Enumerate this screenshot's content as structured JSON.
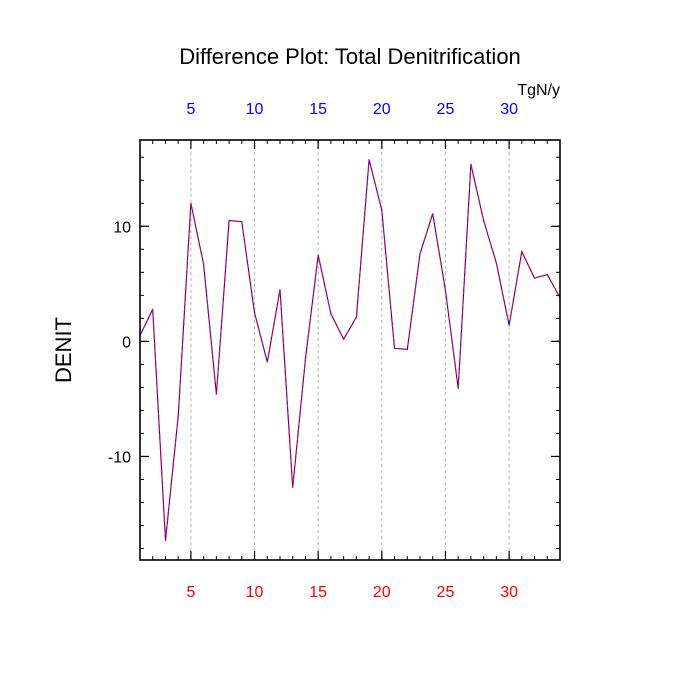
{
  "chart_data": {
    "type": "line",
    "title": "Difference Plot: Total Denitrification",
    "units_label": "TgN/y",
    "xlabel": "",
    "ylabel": "DENIT",
    "xlim": [
      1,
      34
    ],
    "ylim": [
      -19,
      17.5
    ],
    "x_ticks": [
      5,
      10,
      15,
      20,
      25,
      30
    ],
    "x_tick_labels": [
      "5",
      "10",
      "15",
      "20",
      "25",
      "30"
    ],
    "y_ticks": [
      -10,
      0,
      10
    ],
    "y_tick_labels": [
      "-10",
      "0",
      "10"
    ],
    "vertical_grid": "dashed, at x tick positions",
    "x_axis_top_color": "#0000ff",
    "x_axis_bottom_color": "#ff0000",
    "line_colors": [
      "#0000ff",
      "#ff0000"
    ],
    "line_style": "dashed",
    "series": [
      {
        "values_x": [
          1,
          2,
          3,
          4,
          5,
          6,
          7,
          8,
          9,
          10,
          11,
          12,
          13,
          14,
          15,
          16,
          17,
          18,
          19,
          20,
          21,
          22,
          23,
          24,
          25,
          26,
          27,
          28,
          29,
          30,
          31,
          32,
          33,
          34
        ],
        "values_y": [
          0.5,
          2.8,
          -17.3,
          -6.5,
          12.0,
          6.7,
          -4.6,
          10.5,
          10.4,
          2.5,
          -1.8,
          4.5,
          -12.7,
          -1.5,
          7.5,
          2.4,
          0.2,
          2.1,
          15.8,
          11.4,
          -0.6,
          -0.7,
          7.6,
          11.1,
          4.4,
          -4.1,
          15.4,
          10.5,
          6.8,
          1.4,
          7.8,
          5.5,
          5.8,
          3.8
        ]
      }
    ]
  }
}
